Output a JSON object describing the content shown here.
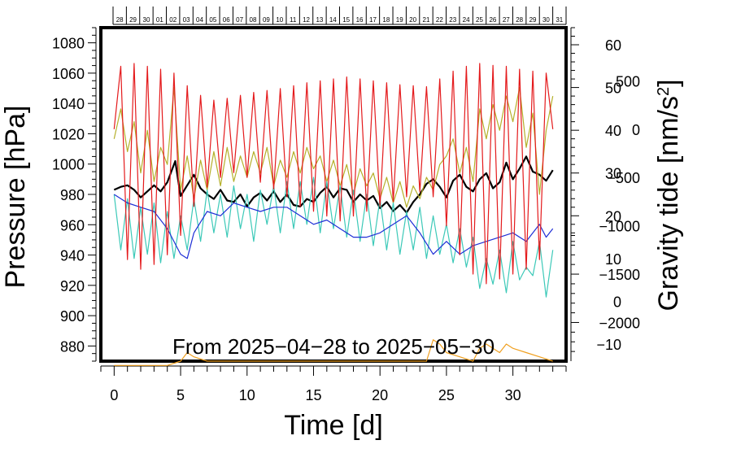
{
  "chart_data": {
    "type": "line",
    "annotation": "From 2025−04−28 to 2025−05−30",
    "x_axis": {
      "label": "Time [d]",
      "range": [
        -1,
        34
      ],
      "ticks": [
        "0",
        "5",
        "10",
        "15",
        "20",
        "25",
        "30"
      ],
      "tick_values": [
        0,
        5,
        10,
        15,
        20,
        25,
        30
      ]
    },
    "top_axis": {
      "day_labels": [
        "28",
        "29",
        "30",
        "01",
        "02",
        "03",
        "04",
        "05",
        "06",
        "07",
        "08",
        "09",
        "10",
        "11",
        "12",
        "13",
        "14",
        "15",
        "16",
        "17",
        "18",
        "19",
        "20",
        "21",
        "22",
        "23",
        "24",
        "25",
        "26",
        "27",
        "28",
        "29",
        "30",
        "31"
      ]
    },
    "y_left": {
      "label": "Pressure [hPa]",
      "range": [
        870,
        1090
      ],
      "ticks": [
        "880",
        "900",
        "920",
        "940",
        "960",
        "980",
        "1000",
        "1020",
        "1040",
        "1060",
        "1080"
      ],
      "tick_values": [
        880,
        900,
        920,
        940,
        960,
        980,
        1000,
        1020,
        1040,
        1060,
        1080
      ]
    },
    "y_right_top": {
      "label": "Gravity tide [nm/s",
      "label_sup": "2",
      "label_end": "]",
      "range": [
        -14,
        64
      ],
      "ticks": [
        "60",
        "50",
        "40",
        "30",
        "20",
        "10",
        "0",
        "−10"
      ],
      "tick_values": [
        60,
        50,
        40,
        30,
        20,
        10,
        0,
        -10
      ]
    },
    "y_right_bottom": {
      "range": [
        -2400,
        1050
      ],
      "ticks": [
        "500",
        "0",
        "−500",
        "−1000",
        "−1500",
        "−2000"
      ],
      "tick_values": [
        500,
        0,
        -500,
        -1000,
        -1500,
        -2000
      ]
    },
    "series": [
      {
        "name": "pressure",
        "axis": "left",
        "color": "#000000",
        "x": [
          0,
          0.5,
          1,
          1.5,
          2,
          2.5,
          3,
          3.5,
          4,
          4.3,
          4.6,
          4.8,
          5,
          5.5,
          6,
          6.5,
          7,
          7.5,
          8,
          8.5,
          9,
          9.5,
          10,
          10.5,
          11,
          11.5,
          12,
          12.5,
          13,
          13.5,
          14,
          14.5,
          15,
          15.5,
          16,
          16.5,
          17,
          17.5,
          18,
          18.5,
          19,
          19.5,
          20,
          20.5,
          21,
          21.5,
          22,
          22.5,
          23,
          23.5,
          24,
          24.5,
          25,
          25.5,
          26,
          26.5,
          27,
          27.5,
          28,
          28.5,
          29,
          29.5,
          30,
          30.5,
          31,
          31.5,
          32,
          32.5,
          33
        ],
        "values": [
          983,
          985,
          986,
          983,
          978,
          982,
          986,
          982,
          988,
          995,
          1002,
          990,
          979,
          986,
          993,
          984,
          980,
          977,
          983,
          976,
          975,
          980,
          972,
          978,
          981,
          976,
          982,
          975,
          980,
          973,
          972,
          977,
          975,
          981,
          985,
          978,
          984,
          983,
          975,
          980,
          976,
          979,
          971,
          975,
          969,
          973,
          968,
          975,
          980,
          987,
          990,
          985,
          978,
          989,
          993,
          985,
          982,
          990,
          994,
          984,
          988,
          1001,
          990,
          997,
          1005,
          995,
          993,
          989,
          996
        ]
      },
      {
        "name": "gravity-tide-olive",
        "axis": "right_top",
        "color": "#b5b02b",
        "x": [
          0,
          0.5,
          1,
          1.5,
          2,
          2.5,
          3,
          3.5,
          4,
          4.5,
          5,
          5.5,
          6,
          6.5,
          7,
          7.5,
          8,
          8.5,
          9,
          9.5,
          10,
          10.5,
          11,
          11.5,
          12,
          12.5,
          13,
          13.5,
          14,
          14.5,
          15,
          15.5,
          16,
          16.5,
          17,
          17.5,
          18,
          18.5,
          19,
          19.5,
          20,
          20.5,
          21,
          21.5,
          22,
          22.5,
          23,
          23.5,
          24,
          24.5,
          25,
          25.5,
          26,
          26.5,
          27,
          27.5,
          28,
          28.5,
          29,
          29.5,
          30,
          30.5,
          31,
          31.5,
          32,
          32.5,
          33
        ],
        "values": [
          38,
          45,
          35,
          42,
          30,
          40,
          28,
          36,
          32,
          50,
          26,
          34,
          24,
          33,
          26,
          35,
          27,
          36,
          28,
          34,
          29,
          35,
          30,
          36,
          27,
          33,
          29,
          35,
          30,
          36,
          31,
          34,
          28,
          33,
          27,
          32,
          25,
          31,
          27,
          30,
          24,
          29,
          23,
          28,
          22,
          27,
          24,
          29,
          26,
          32,
          34,
          38,
          30,
          36,
          28,
          45,
          38,
          46,
          40,
          48,
          42,
          50,
          36,
          44,
          25,
          40,
          48
        ]
      },
      {
        "name": "gravity-tide-teal",
        "axis": "right_top",
        "color": "#3cc9b8",
        "x": [
          0,
          0.5,
          1,
          1.5,
          2,
          2.5,
          3,
          3.5,
          4,
          4.5,
          5,
          5.5,
          6,
          6.5,
          7,
          7.5,
          8,
          8.5,
          9,
          9.5,
          10,
          10.5,
          11,
          11.5,
          12,
          12.5,
          13,
          13.5,
          14,
          14.5,
          15,
          15.5,
          16,
          16.5,
          17,
          17.5,
          18,
          18.5,
          19,
          19.5,
          20,
          20.5,
          21,
          21.5,
          22,
          22.5,
          23,
          23.5,
          24,
          24.5,
          25,
          25.5,
          26,
          26.5,
          27,
          27.5,
          28,
          28.5,
          29,
          29.5,
          30,
          30.5,
          31,
          31.5,
          32,
          32.5,
          33
        ],
        "values": [
          25,
          12,
          24,
          10,
          22,
          11,
          23,
          9,
          21,
          10,
          20,
          12,
          24,
          14,
          26,
          16,
          25,
          15,
          27,
          17,
          25,
          14,
          26,
          18,
          27,
          16,
          28,
          17,
          28,
          18,
          29,
          16,
          28,
          17,
          27,
          15,
          26,
          14,
          25,
          13,
          24,
          12,
          23,
          11,
          21,
          12,
          22,
          10,
          20,
          11,
          18,
          9,
          17,
          8,
          15,
          3,
          10,
          4,
          12,
          2,
          14,
          5,
          8,
          6,
          14,
          1,
          12
        ]
      },
      {
        "name": "gravity-tide-blue",
        "axis": "right_top",
        "color": "#1f2fd6",
        "x": [
          0,
          1,
          2,
          3,
          4,
          5,
          5.5,
          6,
          7,
          8,
          9,
          10,
          11,
          12,
          13,
          14,
          15,
          16,
          17,
          18,
          19,
          20,
          21,
          22,
          23,
          24,
          25,
          26,
          27,
          28,
          29,
          30,
          31,
          32,
          32.5,
          33
        ],
        "values": [
          25,
          23,
          22,
          21,
          17,
          11,
          10,
          16,
          21,
          20,
          23,
          22,
          21,
          22,
          22,
          20,
          18,
          19,
          17,
          15,
          15,
          16,
          18,
          20,
          16,
          11,
          14,
          11,
          13,
          14,
          15,
          16,
          14,
          18,
          15,
          17
        ]
      },
      {
        "name": "gravity-residual-orange",
        "axis": "right_top",
        "color": "#f0a020",
        "x": [
          0,
          1,
          2,
          3,
          4,
          5,
          5.5,
          6,
          7,
          8,
          9,
          10,
          11,
          12,
          13,
          14,
          15,
          16,
          17,
          18,
          19,
          20,
          21,
          22,
          23,
          23.5,
          24,
          24.5,
          25,
          26,
          27,
          27.5,
          28,
          29,
          29.5,
          30,
          31,
          32,
          33
        ],
        "values": [
          -15,
          -15,
          -15,
          -15,
          -15,
          -14,
          -12,
          -13,
          -14,
          -14,
          -14,
          -14,
          -14,
          -14,
          -14,
          -14,
          -14,
          -14,
          -14,
          -14,
          -14,
          -14,
          -14,
          -14,
          -14,
          -14,
          -9,
          -10,
          -12,
          -13,
          -14,
          -11,
          -10,
          -12,
          -10,
          -11,
          -12,
          -13,
          -14
        ]
      },
      {
        "name": "gravity-tide-red",
        "axis": "right_bottom",
        "color": "#e41a1c",
        "x": [
          0,
          0.5,
          1,
          1.5,
          2,
          2.5,
          3,
          3.5,
          4,
          4.5,
          5,
          5.5,
          6,
          6.5,
          7,
          7.5,
          8,
          8.5,
          9,
          9.5,
          10,
          10.5,
          11,
          11.5,
          12,
          12.5,
          13,
          13.5,
          14,
          14.5,
          15,
          15.5,
          16,
          16.5,
          17,
          17.5,
          18,
          18.5,
          19,
          19.5,
          20,
          20.5,
          21,
          21.5,
          22,
          22.5,
          23,
          23.5,
          24,
          24.5,
          25,
          25.5,
          26,
          26.5,
          27,
          27.5,
          28,
          28.5,
          29,
          29.5,
          30,
          30.5,
          31,
          31.5,
          32,
          32.5,
          33
        ],
        "values": [
          0,
          650,
          -1350,
          680,
          -1450,
          650,
          -1400,
          620,
          -1300,
          580,
          -1100,
          450,
          -800,
          350,
          -600,
          300,
          -500,
          320,
          -450,
          350,
          -500,
          380,
          -550,
          400,
          -620,
          420,
          -700,
          450,
          -800,
          480,
          -850,
          500,
          -900,
          520,
          -950,
          540,
          -900,
          520,
          -850,
          500,
          -800,
          480,
          -750,
          460,
          -700,
          450,
          -650,
          440,
          -700,
          520,
          -1000,
          600,
          -1300,
          650,
          -1500,
          680,
          -1600,
          660,
          -1550,
          650,
          -1500,
          620,
          -1450,
          600,
          -1350,
          580,
          0
        ]
      }
    ]
  }
}
